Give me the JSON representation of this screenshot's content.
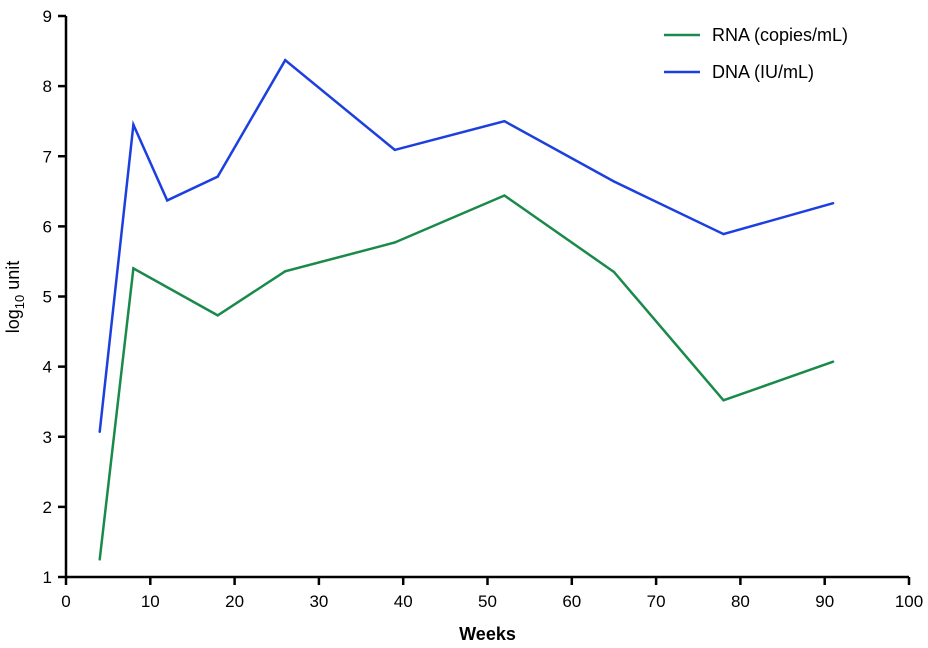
{
  "chart_data": {
    "type": "line",
    "xlabel": "Weeks",
    "ylabel": {
      "base": "log",
      "subscript": "10",
      "rest": " unit"
    },
    "xlim": [
      0,
      100
    ],
    "ylim": [
      1,
      9
    ],
    "xticks": [
      "0",
      "10",
      "20",
      "30",
      "40",
      "50",
      "60",
      "70",
      "80",
      "90",
      "100"
    ],
    "yticks": [
      "1",
      "2",
      "3",
      "4",
      "5",
      "6",
      "7",
      "8",
      "9"
    ],
    "grid": false,
    "legend_position": "top-right",
    "series": [
      {
        "name": "RNA (copies/mL)",
        "color": "#1a8a4a",
        "x": [
          4,
          8,
          18,
          26,
          39,
          52,
          65,
          78,
          91
        ],
        "y": [
          1.25,
          5.4,
          4.73,
          5.36,
          5.77,
          6.44,
          5.35,
          3.52,
          4.07
        ]
      },
      {
        "name": "DNA (IU/mL)",
        "color": "#1c3fe0",
        "x": [
          4,
          8,
          12,
          18,
          26,
          39,
          52,
          65,
          78,
          91
        ],
        "y": [
          3.07,
          7.45,
          6.37,
          6.71,
          8.37,
          7.09,
          7.5,
          6.64,
          5.89,
          6.33
        ]
      }
    ]
  }
}
